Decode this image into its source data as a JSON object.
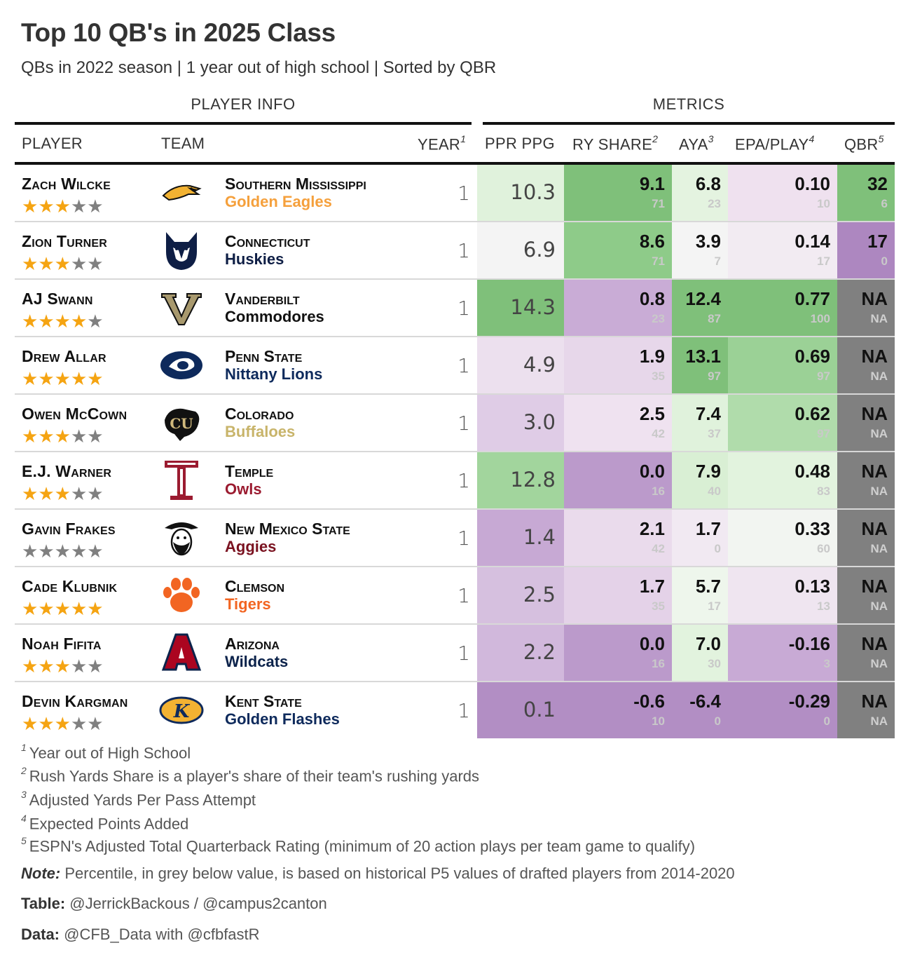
{
  "title": "Top 10 QB's in 2025 Class",
  "subtitle": "QBs in 2022 season | 1 year out of high school | Sorted by QBR",
  "spanners": {
    "player_info": "PLAYER INFO",
    "metrics": "METRICS"
  },
  "columns": {
    "player": "PLAYER",
    "team": "TEAM",
    "year": "YEAR",
    "year_fn": "1",
    "ppr_ppg": "PPR PPG",
    "ry_share": "RY SHARE",
    "ry_share_fn": "2",
    "aya": "AYA",
    "aya_fn": "3",
    "epa": "EPA/PLAY",
    "epa_fn": "4",
    "qbr": "QBR",
    "qbr_fn": "5"
  },
  "colors": {
    "star_on": "#f5a412",
    "star_off": "#808080",
    "na_gray": "#808080"
  },
  "rows": [
    {
      "name": "Zach Wilcke",
      "stars": 3,
      "logo": "southern-miss-eagle-icon",
      "school": "Southern Mississippi",
      "mascot": "Golden Eagles",
      "mascot_color": "#f5a03c",
      "year": "1",
      "ppg": "10.3",
      "ppg_bg": "#e0f2dc",
      "ry": "9.1",
      "ry_pct": "71",
      "ry_bg": "#7fc07a",
      "aya": "6.8",
      "aya_pct": "23",
      "aya_bg": "#e4f3e0",
      "epa": "0.10",
      "epa_pct": "10",
      "epa_bg": "#efe1ef",
      "qbr": "32",
      "qbr_pct": "6",
      "qbr_bg": "#7fc07a"
    },
    {
      "name": "Zion Turner",
      "stars": 3,
      "logo": "uconn-husky-icon",
      "school": "Connecticut",
      "mascot": "Huskies",
      "mascot_color": "#0e1e45",
      "year": "1",
      "ppg": "6.9",
      "ppg_bg": "#f4f4f4",
      "ry": "8.6",
      "ry_pct": "71",
      "ry_bg": "#8ecb89",
      "aya": "3.9",
      "aya_pct": "7",
      "aya_bg": "#f4f4f4",
      "epa": "0.14",
      "epa_pct": "17",
      "epa_bg": "#f2ebf2",
      "qbr": "17",
      "qbr_pct": "0",
      "qbr_bg": "#ad87c0"
    },
    {
      "name": "AJ Swann",
      "stars": 4,
      "logo": "vanderbilt-v-icon",
      "school": "Vanderbilt",
      "mascot": "Commodores",
      "mascot_color": "#111111",
      "year": "1",
      "ppg": "14.3",
      "ppg_bg": "#7fc07a",
      "ry": "0.8",
      "ry_pct": "23",
      "ry_bg": "#c9acd6",
      "aya": "12.4",
      "aya_pct": "87",
      "aya_bg": "#7fc07a",
      "epa": "0.77",
      "epa_pct": "100",
      "epa_bg": "#7fc07a",
      "qbr": "NA",
      "qbr_pct": "NA",
      "qbr_bg": "#808080"
    },
    {
      "name": "Drew Allar",
      "stars": 5,
      "logo": "penn-state-lion-icon",
      "school": "Penn State",
      "mascot": "Nittany Lions",
      "mascot_color": "#0e2a5c",
      "year": "1",
      "ppg": "4.9",
      "ppg_bg": "#ece0ee",
      "ry": "1.9",
      "ry_pct": "35",
      "ry_bg": "#e7d7ea",
      "aya": "13.1",
      "aya_pct": "97",
      "aya_bg": "#7fc07a",
      "epa": "0.69",
      "epa_pct": "97",
      "epa_bg": "#9bd196",
      "qbr": "NA",
      "qbr_pct": "NA",
      "qbr_bg": "#808080"
    },
    {
      "name": "Owen McCown",
      "stars": 3,
      "logo": "colorado-cu-icon",
      "school": "Colorado",
      "mascot": "Buffaloes",
      "mascot_color": "#c8b46a",
      "year": "1",
      "ppg": "3.0",
      "ppg_bg": "#dfcce6",
      "ry": "2.5",
      "ry_pct": "42",
      "ry_bg": "#efe2f0",
      "aya": "7.4",
      "aya_pct": "37",
      "aya_bg": "#e0f2dc",
      "epa": "0.62",
      "epa_pct": "97",
      "epa_bg": "#b0dcab",
      "qbr": "NA",
      "qbr_pct": "NA",
      "qbr_bg": "#808080"
    },
    {
      "name": "E.J. Warner",
      "stars": 3,
      "logo": "temple-t-icon",
      "school": "Temple",
      "mascot": "Owls",
      "mascot_color": "#9b1b30",
      "year": "1",
      "ppg": "12.8",
      "ppg_bg": "#a2d59d",
      "ry": "0.0",
      "ry_pct": "16",
      "ry_bg": "#bb9acb",
      "aya": "7.9",
      "aya_pct": "40",
      "aya_bg": "#d9efd4",
      "epa": "0.48",
      "epa_pct": "83",
      "epa_bg": "#e2f3de",
      "qbr": "NA",
      "qbr_pct": "NA",
      "qbr_bg": "#808080"
    },
    {
      "name": "Gavin Frakes",
      "stars": 0,
      "logo": "nmsu-pistol-pete-icon",
      "school": "New Mexico State",
      "mascot": "Aggies",
      "mascot_color": "#7a1220",
      "year": "1",
      "ppg": "1.4",
      "ppg_bg": "#c7a9d4",
      "ry": "2.1",
      "ry_pct": "42",
      "ry_bg": "#eadbec",
      "aya": "1.7",
      "aya_pct": "0",
      "aya_bg": "#f1e9f2",
      "epa": "0.33",
      "epa_pct": "60",
      "epa_bg": "#f2f5f1",
      "qbr": "NA",
      "qbr_pct": "NA",
      "qbr_bg": "#808080"
    },
    {
      "name": "Cade Klubnik",
      "stars": 5,
      "logo": "clemson-paw-icon",
      "school": "Clemson",
      "mascot": "Tigers",
      "mascot_color": "#f26522",
      "year": "1",
      "ppg": "2.5",
      "ppg_bg": "#d6c0df",
      "ry": "1.7",
      "ry_pct": "35",
      "ry_bg": "#e4d2e8",
      "aya": "5.7",
      "aya_pct": "17",
      "aya_bg": "#eef6ec",
      "epa": "0.13",
      "epa_pct": "13",
      "epa_bg": "#efe5f0",
      "qbr": "NA",
      "qbr_pct": "NA",
      "qbr_bg": "#808080"
    },
    {
      "name": "Noah Fifita",
      "stars": 3,
      "logo": "arizona-a-icon",
      "school": "Arizona",
      "mascot": "Wildcats",
      "mascot_color": "#0c234b",
      "year": "1",
      "ppg": "2.2",
      "ppg_bg": "#d1b8dc",
      "ry": "0.0",
      "ry_pct": "16",
      "ry_bg": "#bb9acb",
      "aya": "7.0",
      "aya_pct": "30",
      "aya_bg": "#e2f3de",
      "epa": "-0.16",
      "epa_pct": "3",
      "epa_bg": "#c8aad5",
      "qbr": "NA",
      "qbr_pct": "NA",
      "qbr_bg": "#808080"
    },
    {
      "name": "Devin Kargman",
      "stars": 3,
      "logo": "kent-state-flash-icon",
      "school": "Kent State",
      "mascot": "Golden Flashes",
      "mascot_color": "#0e2a5c",
      "year": "1",
      "ppg": "0.1",
      "ppg_bg": "#b28ec4",
      "ry": "-0.6",
      "ry_pct": "10",
      "ry_bg": "#b28ec4",
      "aya": "-6.4",
      "aya_pct": "0",
      "aya_bg": "#b28ec4",
      "epa": "-0.29",
      "epa_pct": "0",
      "epa_bg": "#b28ec4",
      "qbr": "NA",
      "qbr_pct": "NA",
      "qbr_bg": "#808080"
    }
  ],
  "footnotes": [
    {
      "num": "1",
      "text": "Year out of High School"
    },
    {
      "num": "2",
      "text": "Rush Yards Share is a player's share of their team's rushing yards"
    },
    {
      "num": "3",
      "text": "Adjusted Yards Per Pass Attempt"
    },
    {
      "num": "4",
      "text": "Expected Points Added"
    },
    {
      "num": "5",
      "text": "ESPN's Adjusted Total Quarterback Rating (minimum of 20 action plays per team game to qualify)"
    }
  ],
  "note": {
    "label": "Note:",
    "text": " Percentile, in grey below value, is based on historical P5 values of drafted players from 2014-2020"
  },
  "credit_table": {
    "label": "Table:",
    "text": " @JerrickBackous / @campus2canton"
  },
  "credit_data": {
    "label": "Data:",
    "text": " @CFB_Data with @cfbfastR"
  }
}
